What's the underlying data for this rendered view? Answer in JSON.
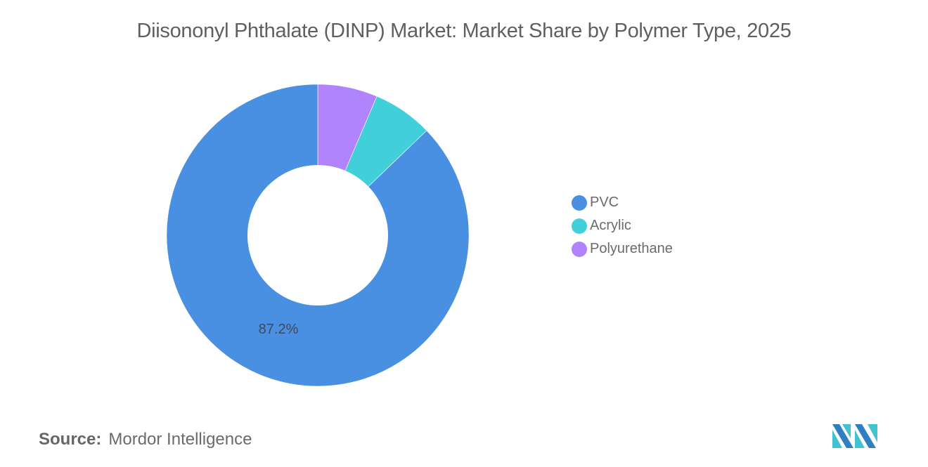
{
  "title": "Diisononyl Phthalate (DINP) Market: Market Share by Polymer Type, 2025",
  "source": {
    "label": "Source:",
    "value": "Mordor Intelligence"
  },
  "legend": [
    {
      "label": "PVC",
      "color": "#4a90e2"
    },
    {
      "label": "Acrylic",
      "color": "#41cfd9"
    },
    {
      "label": "Polyurethane",
      "color": "#b183fc"
    }
  ],
  "slice_label": "87.2%",
  "chart_data": {
    "type": "pie",
    "subtype": "donut",
    "title": "Diisononyl Phthalate (DINP) Market: Market Share by Polymer Type, 2025",
    "categories": [
      "PVC",
      "Acrylic",
      "Polyurethane"
    ],
    "values": [
      87.2,
      6.4,
      6.4
    ],
    "units": "%",
    "colors": [
      "#4a90e2",
      "#41cfd9",
      "#b183fc"
    ],
    "annotations": [
      "87.2%"
    ],
    "legend_position": "right"
  }
}
